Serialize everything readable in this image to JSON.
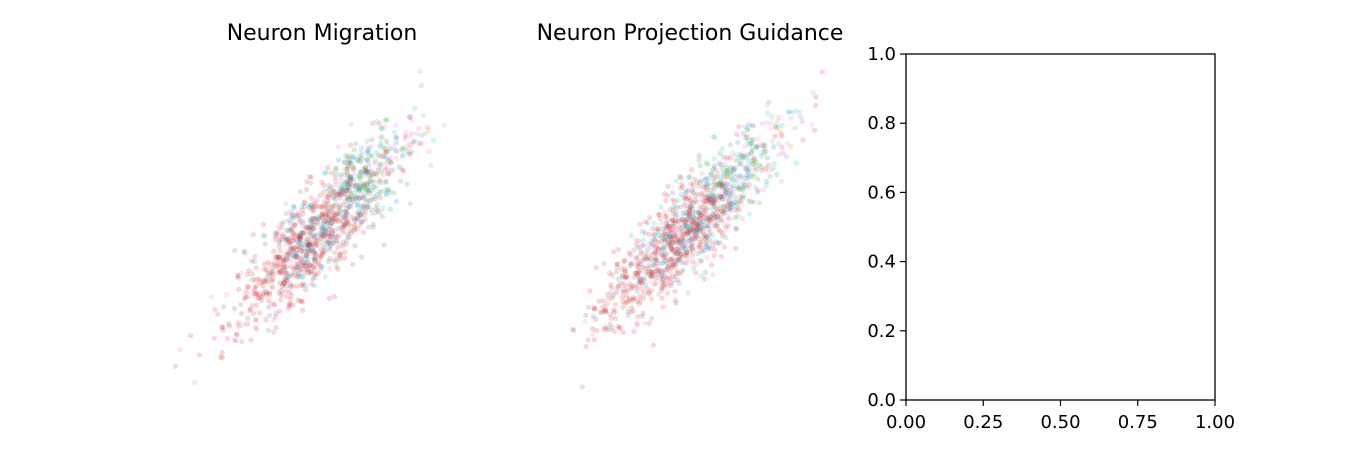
{
  "palette": [
    "#1f77b4",
    "#ff7f0e",
    "#2ca02c",
    "#d62728",
    "#9467bd",
    "#8c564b",
    "#e377c2",
    "#7f7f7f",
    "#bcbd22",
    "#17becf"
  ],
  "chart_data": [
    {
      "type": "scatter",
      "title": "Neuron Migration",
      "axes_visible": false,
      "point_alpha": 0.18,
      "point_color_categories": 10,
      "point_count": 1100,
      "xlim": [
        -3.5,
        3.5
      ],
      "ylim": [
        -3.5,
        3.5
      ],
      "trend": {
        "slope": 1.0,
        "intercept": 0.0,
        "x_range": [
          -3.0,
          3.2
        ],
        "cross_spread": 0.35
      },
      "x": [],
      "y": [],
      "categories": []
    },
    {
      "type": "scatter",
      "title": "Neuron Projection Guidance",
      "axes_visible": false,
      "point_alpha": 0.18,
      "point_color_categories": 10,
      "point_count": 1100,
      "xlim": [
        -3.5,
        3.5
      ],
      "ylim": [
        -3.5,
        3.5
      ],
      "trend": {
        "slope": 1.0,
        "intercept": 0.0,
        "x_range": [
          -3.0,
          3.2
        ],
        "cross_spread": 0.35
      },
      "x": [],
      "y": [],
      "categories": []
    },
    {
      "type": "scatter",
      "title": "",
      "axes_visible": true,
      "xlim": [
        0.0,
        1.0
      ],
      "ylim": [
        0.0,
        1.0
      ],
      "xticks": [
        "0.00",
        "0.25",
        "0.50",
        "0.75",
        "1.00"
      ],
      "yticks": [
        "0.0",
        "0.2",
        "0.4",
        "0.6",
        "0.8",
        "1.0"
      ],
      "x": [],
      "y": []
    }
  ]
}
